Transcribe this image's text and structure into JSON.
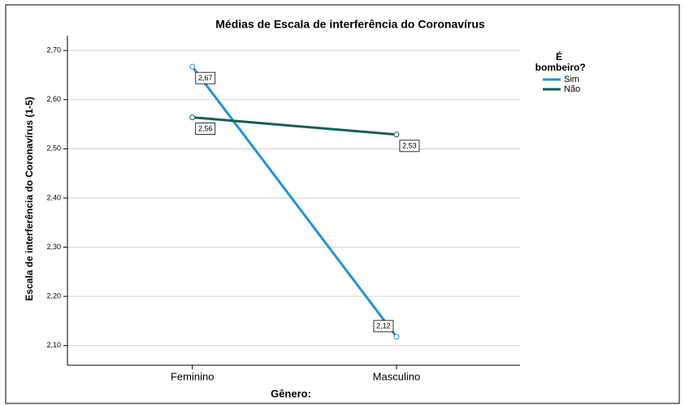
{
  "chart_data": {
    "type": "line",
    "title": "Médias de Escala de interferência do Coronavírus",
    "x_label": "Gênero:",
    "y_label": "Escala de interferência do Coronavírus (1-5)",
    "legend_title": "É bombeiro?",
    "legend_position": "right",
    "categories": [
      "Feminino",
      "Masculino"
    ],
    "series": [
      {
        "name": "Sim",
        "color": "#1f93e0",
        "values": [
          2.667,
          2.118
        ],
        "value_labels": [
          "2,67",
          "2,12"
        ]
      },
      {
        "name": "Não",
        "color": "#145f5a",
        "values": [
          2.564,
          2.529
        ],
        "value_labels": [
          "2,56",
          "2,53"
        ]
      }
    ],
    "ylim": [
      2.06,
      2.73
    ],
    "yticks": [
      {
        "value": 2.1,
        "label": "2,10"
      },
      {
        "value": 2.2,
        "label": "2,20"
      },
      {
        "value": 2.3,
        "label": "2,30"
      },
      {
        "value": 2.4,
        "label": "2,40"
      },
      {
        "value": 2.5,
        "label": "2,50"
      },
      {
        "value": 2.6,
        "label": "2,60"
      },
      {
        "value": 2.7,
        "label": "2,70"
      }
    ],
    "grid": true
  }
}
